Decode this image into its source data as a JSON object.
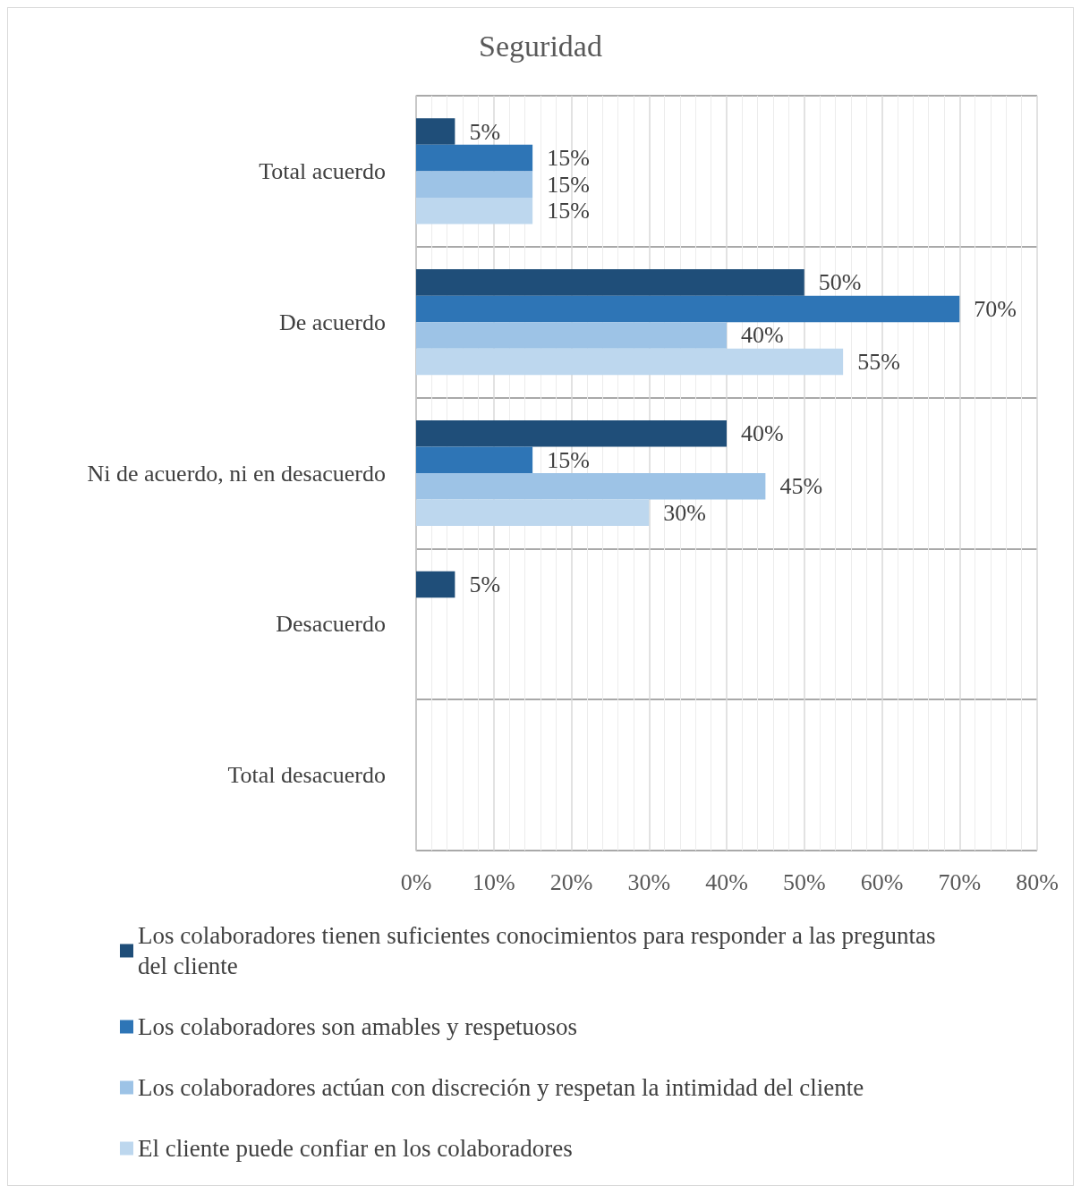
{
  "chart_data": {
    "type": "bar",
    "orientation": "horizontal",
    "title": "Seguridad",
    "categories": [
      "Total acuerdo",
      "De acuerdo",
      "Ni de acuerdo, ni en desacuerdo",
      "Desacuerdo",
      "Total desacuerdo"
    ],
    "series": [
      {
        "name": "Los colaboradores tienen suficientes conocimientos para responder a las preguntas del cliente",
        "color": "#1f4e79",
        "values": [
          5,
          50,
          40,
          5,
          null
        ],
        "value_labels": [
          "5%",
          "50%",
          "40%",
          "5%",
          null
        ]
      },
      {
        "name": "Los colaboradores son amables y respetuosos",
        "color": "#2e75b6",
        "values": [
          15,
          70,
          15,
          null,
          null
        ],
        "value_labels": [
          "15%",
          "70%",
          "15%",
          null,
          null
        ]
      },
      {
        "name": "Los colaboradores actúan con discreción y respetan la intimidad del cliente",
        "color": "#9dc3e6",
        "values": [
          15,
          40,
          45,
          null,
          null
        ],
        "value_labels": [
          "15%",
          "40%",
          "45%",
          null,
          null
        ]
      },
      {
        "name": "El cliente puede confiar en los colaboradores",
        "color": "#bdd7ee",
        "values": [
          15,
          55,
          30,
          null,
          null
        ],
        "value_labels": [
          "15%",
          "55%",
          "30%",
          null,
          null
        ]
      }
    ],
    "xlim": [
      0,
      80
    ],
    "xticks": [
      {
        "value": 0,
        "label": "0%"
      },
      {
        "value": 10,
        "label": "10%"
      },
      {
        "value": 20,
        "label": "20%"
      },
      {
        "value": 30,
        "label": "30%"
      },
      {
        "value": 40,
        "label": "40%"
      },
      {
        "value": 50,
        "label": "50%"
      },
      {
        "value": 60,
        "label": "60%"
      },
      {
        "value": 70,
        "label": "70%"
      },
      {
        "value": 80,
        "label": "80%"
      }
    ],
    "grid": true,
    "legend": "bottom"
  }
}
